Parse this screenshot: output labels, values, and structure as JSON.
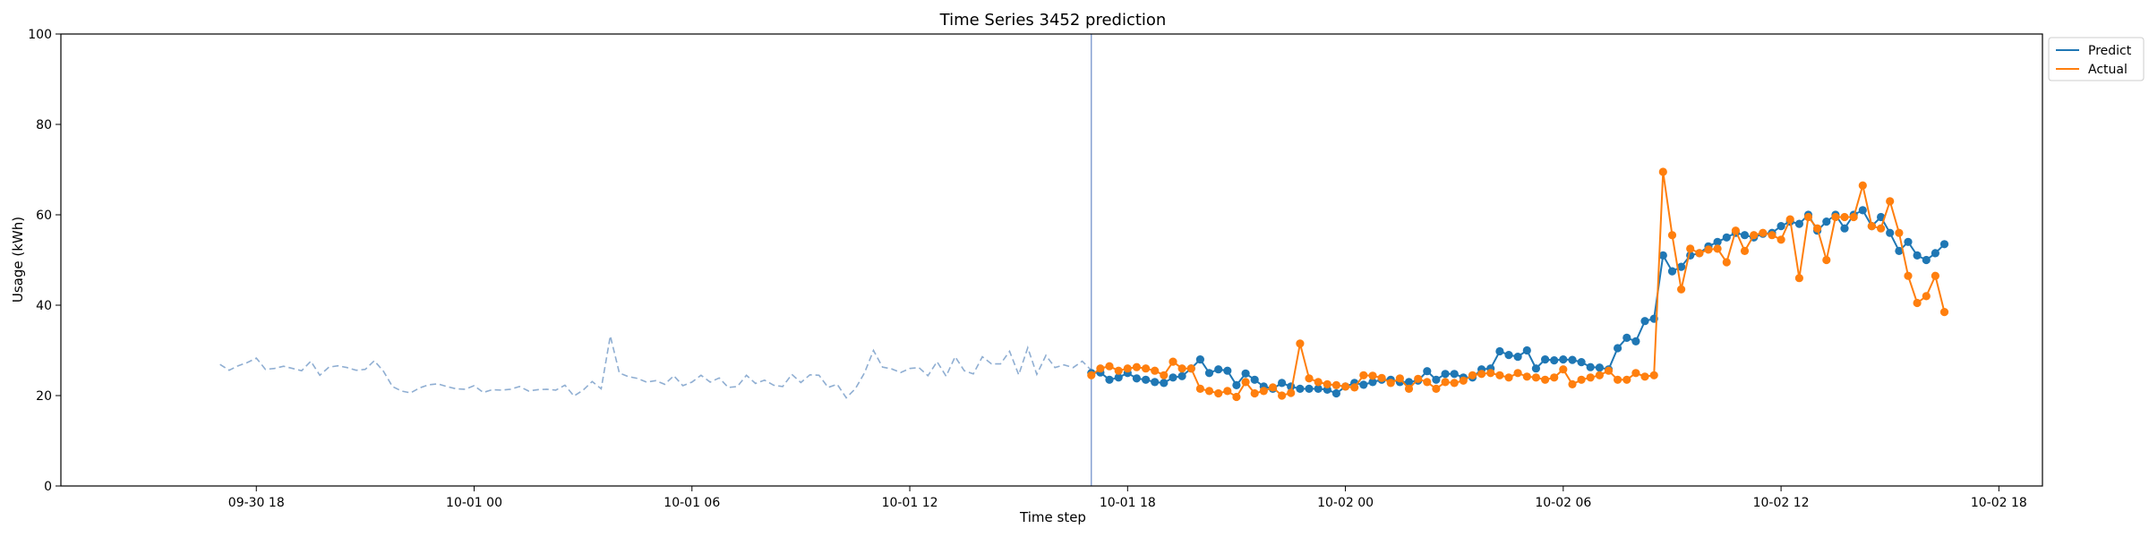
{
  "chart_data": {
    "type": "line",
    "title": "Time Series 3452 prediction",
    "xlabel": "Time step",
    "ylabel": "Usage (kWh)",
    "ylim": [
      0,
      100
    ],
    "yticks": [
      0,
      20,
      40,
      60,
      80,
      100
    ],
    "xlim": [
      "2024-09-30 12:37",
      "2024-10-02 19:12"
    ],
    "xticks": [
      {
        "t": "2024-09-30 18:00",
        "label": "09-30 18"
      },
      {
        "t": "2024-10-01 00:00",
        "label": "10-01 00"
      },
      {
        "t": "2024-10-01 06:00",
        "label": "10-01 06"
      },
      {
        "t": "2024-10-01 12:00",
        "label": "10-01 12"
      },
      {
        "t": "2024-10-01 18:00",
        "label": "10-01 18"
      },
      {
        "t": "2024-10-02 00:00",
        "label": "10-02 00"
      },
      {
        "t": "2024-10-02 06:00",
        "label": "10-02 06"
      },
      {
        "t": "2024-10-02 12:00",
        "label": "10-02 12"
      },
      {
        "t": "2024-10-02 18:00",
        "label": "10-02 18"
      }
    ],
    "forecast_start": "2024-10-01 17:00",
    "history": {
      "start": "2024-09-30 17:00",
      "step_minutes": 15,
      "color": "#8faed2",
      "values": [
        26.9,
        25.6,
        26.6,
        27.3,
        28.3,
        25.8,
        26.0,
        26.5,
        26.0,
        25.5,
        27.6,
        24.5,
        26.3,
        26.6,
        26.2,
        25.6,
        25.8,
        27.7,
        25.4,
        22.0,
        21.0,
        20.6,
        21.7,
        22.4,
        22.6,
        22.0,
        21.5,
        21.4,
        22.2,
        20.7,
        21.3,
        21.2,
        21.4,
        22.0,
        21.0,
        21.3,
        21.4,
        21.2,
        22.3,
        19.9,
        21.2,
        23.1,
        21.5,
        33.2,
        25.0,
        24.2,
        23.8,
        23.0,
        23.3,
        22.5,
        24.4,
        22.2,
        23.0,
        24.5,
        23.0,
        23.9,
        21.8,
        22.0,
        24.5,
        22.7,
        23.4,
        22.3,
        22.0,
        24.7,
        22.9,
        24.6,
        24.5,
        21.8,
        22.5,
        19.5,
        21.5,
        25.0,
        30.0,
        26.3,
        25.9,
        25.1,
        26.0,
        26.2,
        24.4,
        27.5,
        24.3,
        28.6,
        25.5,
        24.8,
        28.6,
        27.0,
        27.0,
        29.8,
        24.6,
        30.6,
        24.7,
        28.9,
        26.2,
        26.8,
        26.2,
        27.6,
        25.6
      ]
    },
    "forecast": {
      "start": "2024-10-01 17:00",
      "step_minutes": 15,
      "series": [
        {
          "name": "Predict",
          "color": "#1f77b4",
          "values": [
            25.0,
            25.1,
            23.5,
            24.0,
            25.0,
            23.8,
            23.5,
            23.0,
            22.8,
            24.0,
            24.3,
            26.0,
            28.0,
            25.0,
            25.8,
            25.5,
            22.3,
            24.9,
            23.5,
            22.0,
            21.5,
            22.8,
            22.0,
            21.5,
            21.5,
            21.5,
            21.3,
            20.5,
            22.0,
            22.8,
            22.4,
            23.0,
            23.5,
            23.5,
            23.0,
            23.0,
            23.3,
            25.4,
            23.5,
            24.8,
            24.8,
            24.0,
            24.0,
            25.8,
            26.0,
            29.8,
            29.0,
            28.6,
            30.0,
            26.0,
            28.0,
            27.8,
            28.0,
            27.9,
            27.4,
            26.3,
            26.2,
            25.8,
            30.5,
            32.8,
            32.0,
            36.5,
            37.0,
            51.0,
            47.5,
            48.5,
            51.0,
            51.5,
            53.0,
            54.0,
            55.0,
            56.0,
            55.5,
            55.0,
            55.8,
            56.0,
            57.5,
            58.5,
            58.0,
            60.0,
            56.5,
            58.5,
            60.0,
            57.0,
            60.0,
            61.0,
            57.5,
            59.5,
            56.0,
            52.0,
            54.0,
            51.0,
            50.0,
            51.5,
            53.5
          ]
        },
        {
          "name": "Actual",
          "color": "#ff7f0e",
          "values": [
            24.5,
            26.0,
            26.5,
            25.5,
            26.0,
            26.3,
            26.0,
            25.5,
            24.5,
            27.5,
            26.0,
            26.0,
            21.5,
            21.0,
            20.5,
            21.0,
            19.7,
            23.0,
            20.5,
            21.0,
            21.8,
            20.0,
            20.6,
            31.5,
            23.8,
            23.0,
            22.5,
            22.3,
            22.0,
            21.8,
            24.5,
            24.4,
            23.9,
            22.8,
            23.8,
            21.5,
            23.7,
            23.0,
            21.5,
            23.0,
            22.8,
            23.3,
            24.5,
            24.8,
            25.0,
            24.5,
            24.0,
            25.0,
            24.2,
            24.0,
            23.5,
            24.0,
            25.8,
            22.5,
            23.5,
            24.0,
            24.5,
            25.5,
            23.5,
            23.5,
            25.0,
            24.2,
            24.5,
            69.5,
            55.5,
            43.5,
            52.5,
            51.5,
            52.3,
            52.5,
            49.5,
            56.5,
            52.0,
            55.5,
            56.0,
            55.5,
            54.5,
            59.0,
            46.0,
            59.5,
            57.0,
            50.0,
            59.5,
            59.5,
            59.5,
            66.5,
            57.5,
            57.0,
            63.0,
            56.0,
            46.5,
            40.5,
            42.0,
            46.5,
            38.5
          ]
        }
      ]
    },
    "legend": {
      "position": "top-right",
      "entries": [
        "Predict",
        "Actual"
      ]
    },
    "grid": false
  }
}
